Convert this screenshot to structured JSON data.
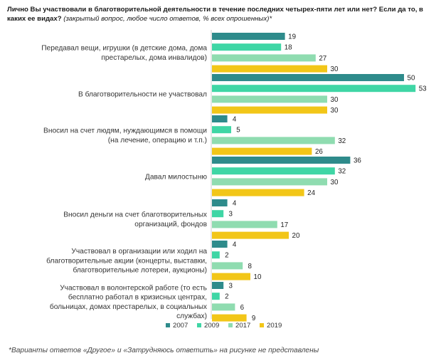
{
  "chart_data": {
    "type": "bar",
    "orientation": "horizontal",
    "title": "Лично Вы участвовали в благотворительной деятельности в течение последних четырех-пяти лет или нет? Если да то, в каких ее видах?",
    "subtitle": "(закрытый вопрос, любое число ответов, % всех опрошенных)*",
    "categories": [
      [
        "Передавал вещи, игрушки (в детские дома, дома",
        "престарелых, дома инвалидов)"
      ],
      [
        "В благотворительности не участвовал"
      ],
      [
        "Вносил на счет людям, нуждающимся в помощи",
        "(на лечение, операцию и т.п.)"
      ],
      [
        "Давал милостыню"
      ],
      [
        "Вносил деньги на счет благотворительных",
        "организаций, фондов"
      ],
      [
        "Участвовал в организации или ходил на",
        "благотворительные акции (концерты, выставки,",
        "благотворительные лотереи, аукционы)"
      ],
      [
        "Участвовал в волонтерской работе (то  есть",
        "бесплатно работал в кризисных центрах,",
        "больницах, домах престарелых, в социальных",
        "службах)"
      ]
    ],
    "series": [
      {
        "name": "2007",
        "color": "#2e8b8b",
        "values": [
          19,
          50,
          4,
          36,
          4,
          4,
          3
        ]
      },
      {
        "name": "2009",
        "color": "#3fd6a5",
        "values": [
          18,
          53,
          5,
          32,
          3,
          2,
          2
        ]
      },
      {
        "name": "2017",
        "color": "#8fdcb0",
        "values": [
          27,
          30,
          32,
          30,
          17,
          8,
          6
        ]
      },
      {
        "name": "2019",
        "color": "#f2c618",
        "values": [
          30,
          30,
          26,
          24,
          20,
          10,
          9
        ]
      }
    ],
    "xlim": [
      0,
      55
    ],
    "grid": false,
    "legend": "bottom"
  },
  "footnote": "*Варианты ответов «Другое» и «Затрудняюсь ответить» на рисунке не представлены"
}
